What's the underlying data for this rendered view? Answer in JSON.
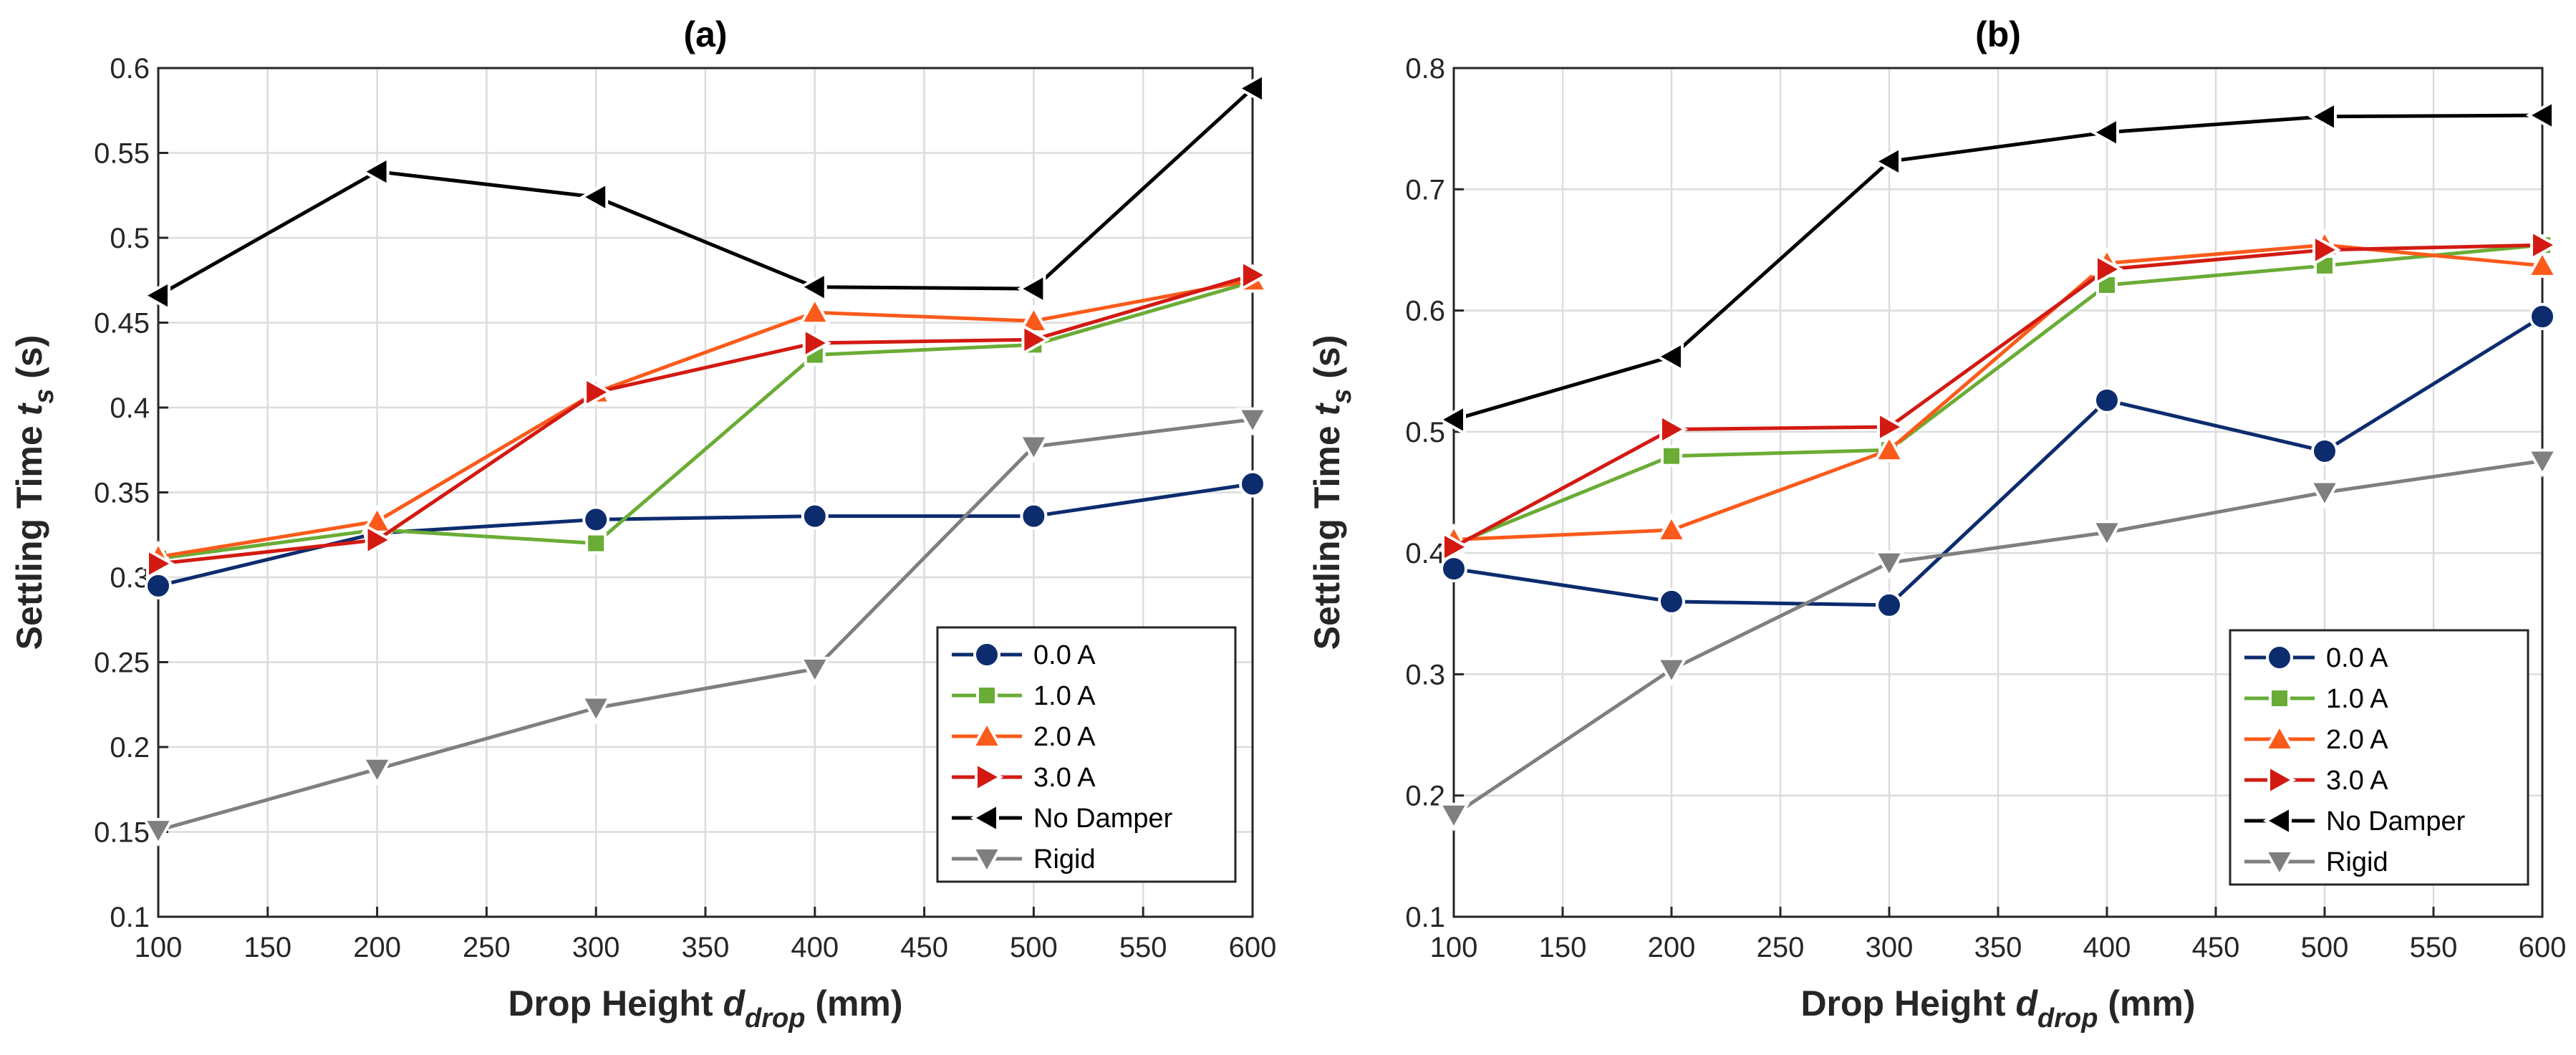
{
  "colors": {
    "0.0 A": "#0c2c6e",
    "1.0 A": "#6aac35",
    "2.0 A": "#fb5a1a",
    "3.0 A": "#d21a12",
    "No Damper": "#000000",
    "Rigid": "#7f7f7f"
  },
  "chart_data": [
    {
      "type": "line",
      "title": "(a)",
      "xlabel": {
        "main": "Drop Height",
        "sym": "d",
        "sub": "drop",
        "unit": "(mm)"
      },
      "ylabel": {
        "main": "Settling Time",
        "sym": "t",
        "sub": "s",
        "unit": "(s)"
      },
      "xlim": [
        100,
        600
      ],
      "ylim": [
        0.1,
        0.6
      ],
      "xticks": [
        100,
        150,
        200,
        250,
        300,
        350,
        400,
        450,
        500,
        550,
        600
      ],
      "yticks": [
        0.1,
        0.15,
        0.2,
        0.25,
        0.3,
        0.35,
        0.4,
        0.45,
        0.5,
        0.55,
        0.6
      ],
      "ytick_labels": [
        "0.1",
        "0.15",
        "0.2",
        "0.25",
        "0.3",
        "0.35",
        "0.4",
        "0.45",
        "0.5",
        "0.55",
        "0.6"
      ],
      "grid": true,
      "legend_position": "bottom-right",
      "x": [
        100,
        200,
        300,
        400,
        500,
        600
      ],
      "series": [
        {
          "name": "0.0 A",
          "marker": "circle",
          "values": [
            0.295,
            0.326,
            0.334,
            0.336,
            0.336,
            0.355
          ]
        },
        {
          "name": "1.0 A",
          "marker": "square",
          "values": [
            0.311,
            0.328,
            0.32,
            0.431,
            0.437,
            0.474
          ]
        },
        {
          "name": "2.0 A",
          "marker": "triangle-up",
          "values": [
            0.312,
            0.333,
            0.409,
            0.456,
            0.451,
            0.475
          ]
        },
        {
          "name": "3.0 A",
          "marker": "triangle-right",
          "values": [
            0.308,
            0.322,
            0.409,
            0.438,
            0.44,
            0.478
          ]
        },
        {
          "name": "No Damper",
          "marker": "triangle-left",
          "values": [
            0.466,
            0.539,
            0.524,
            0.471,
            0.47,
            0.588
          ]
        },
        {
          "name": "Rigid",
          "marker": "triangle-down",
          "values": [
            0.151,
            0.187,
            0.223,
            0.246,
            0.377,
            0.393
          ]
        }
      ]
    },
    {
      "type": "line",
      "title": "(b)",
      "xlabel": {
        "main": "Drop Height",
        "sym": "d",
        "sub": "drop",
        "unit": "(mm)"
      },
      "ylabel": {
        "main": "Settling Time",
        "sym": "t",
        "sub": "s",
        "unit": "(s)"
      },
      "xlim": [
        100,
        600
      ],
      "ylim": [
        0.1,
        0.8
      ],
      "xticks": [
        100,
        150,
        200,
        250,
        300,
        350,
        400,
        450,
        500,
        550,
        600
      ],
      "yticks": [
        0.1,
        0.2,
        0.3,
        0.4,
        0.5,
        0.6,
        0.7,
        0.8
      ],
      "ytick_labels": [
        "0.1",
        "0.2",
        "0.3",
        "0.4",
        "0.5",
        "0.6",
        "0.7",
        "0.8"
      ],
      "grid": true,
      "legend_position": "bottom-right",
      "x": [
        100,
        200,
        300,
        400,
        500,
        600
      ],
      "series": [
        {
          "name": "0.0 A",
          "marker": "circle",
          "values": [
            0.387,
            0.36,
            0.357,
            0.526,
            0.484,
            0.595
          ]
        },
        {
          "name": "1.0 A",
          "marker": "square",
          "values": [
            0.407,
            0.48,
            0.485,
            0.621,
            0.637,
            0.654
          ]
        },
        {
          "name": "2.0 A",
          "marker": "triangle-up",
          "values": [
            0.411,
            0.419,
            0.485,
            0.639,
            0.654,
            0.637
          ]
        },
        {
          "name": "3.0 A",
          "marker": "triangle-right",
          "values": [
            0.405,
            0.502,
            0.504,
            0.634,
            0.65,
            0.654
          ]
        },
        {
          "name": "No Damper",
          "marker": "triangle-left",
          "values": [
            0.51,
            0.562,
            0.723,
            0.747,
            0.76,
            0.761
          ]
        },
        {
          "name": "Rigid",
          "marker": "triangle-down",
          "values": [
            0.184,
            0.304,
            0.392,
            0.417,
            0.45,
            0.476
          ]
        }
      ]
    }
  ]
}
